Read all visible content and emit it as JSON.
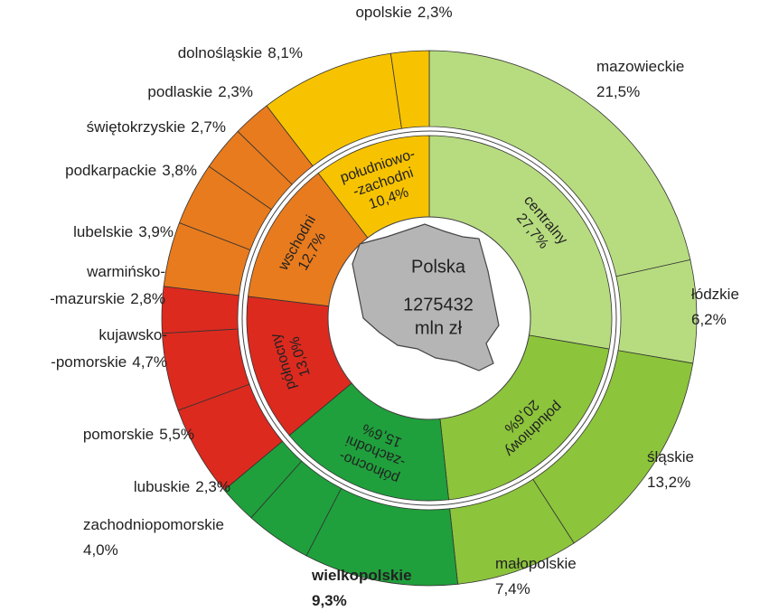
{
  "chart_data": {
    "type": "sunburst",
    "center": {
      "title": "Polska",
      "value": 1275432,
      "unit": "mln zł"
    },
    "series": [
      {
        "name": "centralny",
        "value": 27.7,
        "value_label": "27,7%",
        "color": "#b7dc80",
        "children": [
          {
            "name": "mazowieckie",
            "value": 21.5,
            "value_label": "21,5%"
          },
          {
            "name": "łódzkie",
            "value": 6.2,
            "value_label": "6,2%"
          }
        ]
      },
      {
        "name": "południowy",
        "value": 20.6,
        "value_label": "20,6%",
        "color": "#8cc43c",
        "children": [
          {
            "name": "śląskie",
            "value": 13.2,
            "value_label": "13,2%"
          },
          {
            "name": "małopolskie",
            "value": 7.4,
            "value_label": "7,4%"
          }
        ]
      },
      {
        "name": [
          "północno-",
          "-zachodni"
        ],
        "value": 15.6,
        "value_label": "15,6%",
        "color": "#1fa03c",
        "children": [
          {
            "name": "wielkopolskie",
            "value": 9.3,
            "value_label": "9,3%",
            "highlight": true
          },
          {
            "name": "zachodniopomorskie",
            "value": 4.0,
            "value_label": "4,0%"
          },
          {
            "name": "lubuskie",
            "value": 2.3,
            "value_label": "2,3%"
          }
        ]
      },
      {
        "name": "północny",
        "value": 13.0,
        "value_label": "13,0%",
        "color": "#dc2a1f",
        "children": [
          {
            "name": "pomorskie",
            "value": 5.5,
            "value_label": "5,5%"
          },
          {
            "name": [
              "kujawsko-",
              "-pomorskie"
            ],
            "value": 4.7,
            "value_label": "4,7%"
          },
          {
            "name": [
              "warmińsko-",
              "-mazurskie"
            ],
            "value": 2.8,
            "value_label": "2,8%"
          }
        ]
      },
      {
        "name": "wschodni",
        "value": 12.7,
        "value_label": "12,7%",
        "color": "#e87b1e",
        "children": [
          {
            "name": "lubelskie",
            "value": 3.9,
            "value_label": "3,9%"
          },
          {
            "name": "podkarpackie",
            "value": 3.8,
            "value_label": "3,8%"
          },
          {
            "name": "świętokrzyskie",
            "value": 2.7,
            "value_label": "2,7%"
          },
          {
            "name": "podlaskie",
            "value": 2.3,
            "value_label": "2,3%"
          }
        ]
      },
      {
        "name": [
          "południowo-",
          "-zachodni"
        ],
        "value": 10.4,
        "value_label": "10,4%",
        "color": "#f7c300",
        "children": [
          {
            "name": "dolnośląskie",
            "value": 8.1,
            "value_label": "8,1%"
          },
          {
            "name": "opolskie",
            "value": 2.3,
            "value_label": "2,3%"
          }
        ]
      }
    ]
  }
}
